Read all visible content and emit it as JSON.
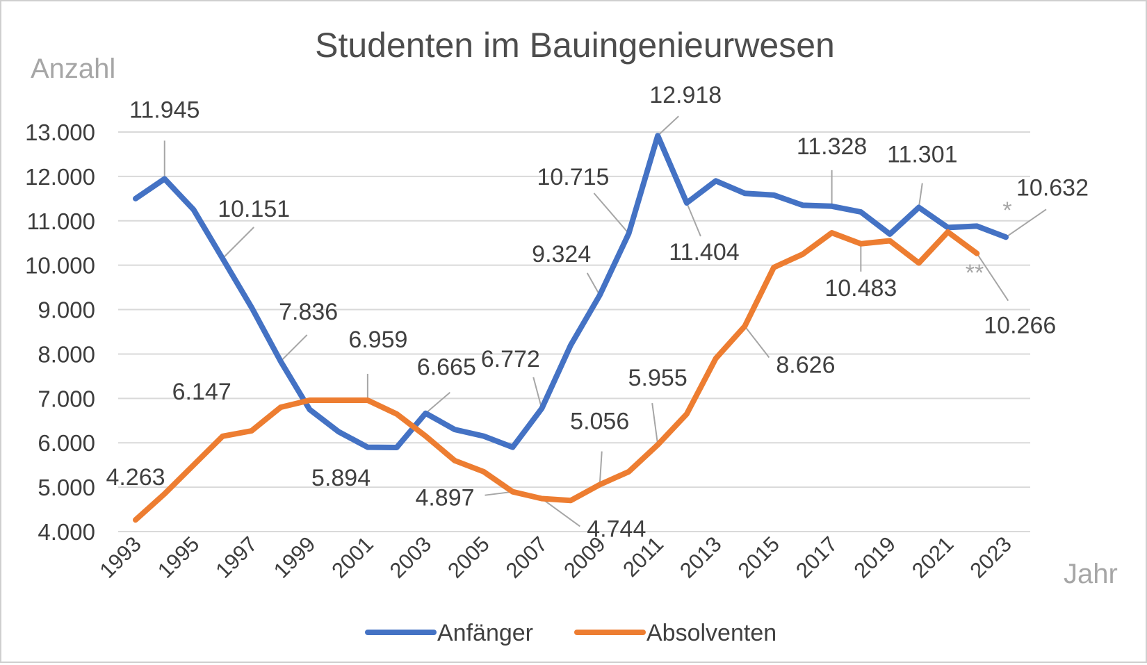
{
  "chart_data": {
    "type": "line",
    "title": "Studenten im Bauingenieurwesen",
    "ylabel": "Anzahl",
    "xlabel": "Jahr",
    "ylim": [
      4000,
      13000
    ],
    "yticks": [
      "4.000",
      "5.000",
      "6.000",
      "7.000",
      "8.000",
      "9.000",
      "10.000",
      "11.000",
      "12.000",
      "13.000"
    ],
    "xticks": [
      "1993",
      "1995",
      "1997",
      "1999",
      "2001",
      "2003",
      "2005",
      "2007",
      "2009",
      "2011",
      "2013",
      "2015",
      "2017",
      "2019",
      "2021",
      "2023"
    ],
    "grid": true,
    "legend_position": "bottom",
    "x": [
      1993,
      1994,
      1995,
      1996,
      1997,
      1998,
      1999,
      2000,
      2001,
      2002,
      2003,
      2004,
      2005,
      2006,
      2007,
      2008,
      2009,
      2010,
      2011,
      2012,
      2013,
      2014,
      2015,
      2016,
      2017,
      2018,
      2019,
      2020,
      2021,
      2022,
      2023
    ],
    "series": [
      {
        "name": "Anfänger",
        "color": "#4472c4",
        "values": [
          11500,
          11945,
          11250,
          10151,
          9050,
          7836,
          6750,
          6250,
          5900,
          5894,
          6665,
          6300,
          6150,
          5900,
          6772,
          8200,
          9324,
          10715,
          12918,
          11404,
          11900,
          11620,
          11580,
          11350,
          11328,
          11200,
          10700,
          11301,
          10850,
          10880,
          10632
        ]
      },
      {
        "name": "Absolventen",
        "color": "#ed7d31",
        "values": [
          4263,
          4850,
          5500,
          6147,
          6270,
          6800,
          6959,
          6959,
          6959,
          6650,
          6150,
          5600,
          5350,
          4897,
          4744,
          4700,
          5056,
          5350,
          5955,
          6650,
          7900,
          8626,
          9950,
          10250,
          10730,
          10483,
          10550,
          10050,
          10750,
          10266,
          null
        ]
      }
    ],
    "data_labels": [
      {
        "series": "Anfänger",
        "x": 1994,
        "text": "11.945"
      },
      {
        "series": "Anfänger",
        "x": 1996,
        "text": "10.151"
      },
      {
        "series": "Anfänger",
        "x": 1998,
        "text": "7.836"
      },
      {
        "series": "Anfänger",
        "x": 2002,
        "text": "5.894"
      },
      {
        "series": "Anfänger",
        "x": 2003,
        "text": "6.665"
      },
      {
        "series": "Anfänger",
        "x": 2007,
        "text": "6.772"
      },
      {
        "series": "Anfänger",
        "x": 2009,
        "text": "9.324"
      },
      {
        "series": "Anfänger",
        "x": 2010,
        "text": "10.715"
      },
      {
        "series": "Anfänger",
        "x": 2011,
        "text": "12.918"
      },
      {
        "series": "Anfänger",
        "x": 2012,
        "text": "11.404"
      },
      {
        "series": "Anfänger",
        "x": 2017,
        "text": "11.328"
      },
      {
        "series": "Anfänger",
        "x": 2020,
        "text": "11.301"
      },
      {
        "series": "Anfänger",
        "x": 2023,
        "text": "10.632"
      },
      {
        "series": "Absolventen",
        "x": 1993,
        "text": "4.263"
      },
      {
        "series": "Absolventen",
        "x": 1996,
        "text": "6.147"
      },
      {
        "series": "Absolventen",
        "x": 2001,
        "text": "6.959"
      },
      {
        "series": "Absolventen",
        "x": 2006,
        "text": "4.897"
      },
      {
        "series": "Absolventen",
        "x": 2007,
        "text": "4.744"
      },
      {
        "series": "Absolventen",
        "x": 2009,
        "text": "5.056"
      },
      {
        "series": "Absolventen",
        "x": 2011,
        "text": "5.955"
      },
      {
        "series": "Absolventen",
        "x": 2014,
        "text": "8.626"
      },
      {
        "series": "Absolventen",
        "x": 2018,
        "text": "10.483"
      },
      {
        "series": "Absolventen",
        "x": 2022,
        "text": "10.266"
      }
    ],
    "annotations": [
      "*",
      "**"
    ]
  }
}
